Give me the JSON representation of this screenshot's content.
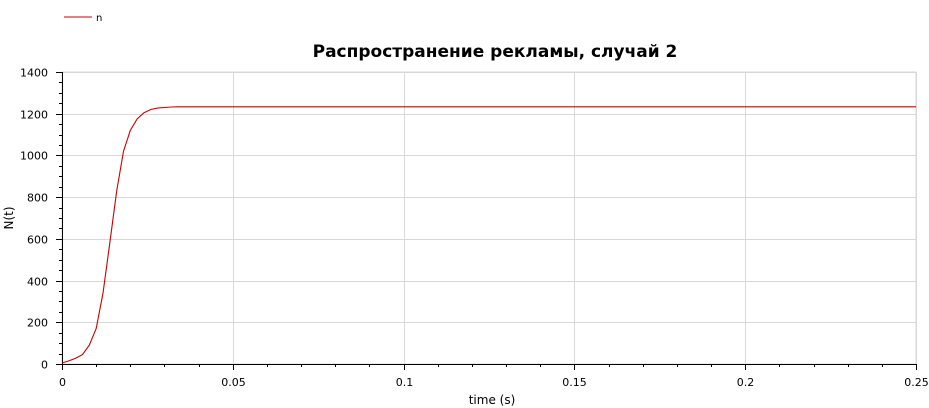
{
  "chart_data": {
    "type": "line",
    "title": "Распространение рекламы, случай 2",
    "xlabel": "time (s)",
    "ylabel": "N(t)",
    "xlim": [
      0,
      0.25
    ],
    "ylim": [
      0,
      1400
    ],
    "xticks": [
      0,
      0.05,
      0.1,
      0.15,
      0.2,
      0.25
    ],
    "xtick_labels": [
      "0",
      "0.05",
      "0.1",
      "0.15",
      "0.2",
      "0.25"
    ],
    "yticks": [
      0,
      200,
      400,
      600,
      800,
      1000,
      1200,
      1400
    ],
    "ytick_labels": [
      "0",
      "200",
      "400",
      "600",
      "800",
      "1000",
      "1200",
      "1400"
    ],
    "grid": true,
    "legend_position": "top-left",
    "series": [
      {
        "name": "n",
        "color": "#cc0000",
        "x": [
          0,
          0.002,
          0.004,
          0.006,
          0.008,
          0.01,
          0.012,
          0.014,
          0.016,
          0.018,
          0.02,
          0.022,
          0.024,
          0.026,
          0.028,
          0.03,
          0.032,
          0.034,
          0.036,
          0.05,
          0.1,
          0.15,
          0.2,
          0.25
        ],
        "y": [
          5,
          15,
          28,
          45,
          90,
          170,
          340,
          580,
          830,
          1020,
          1120,
          1175,
          1205,
          1220,
          1227,
          1230,
          1232,
          1233,
          1233,
          1233,
          1233,
          1233,
          1233,
          1233
        ]
      }
    ]
  }
}
